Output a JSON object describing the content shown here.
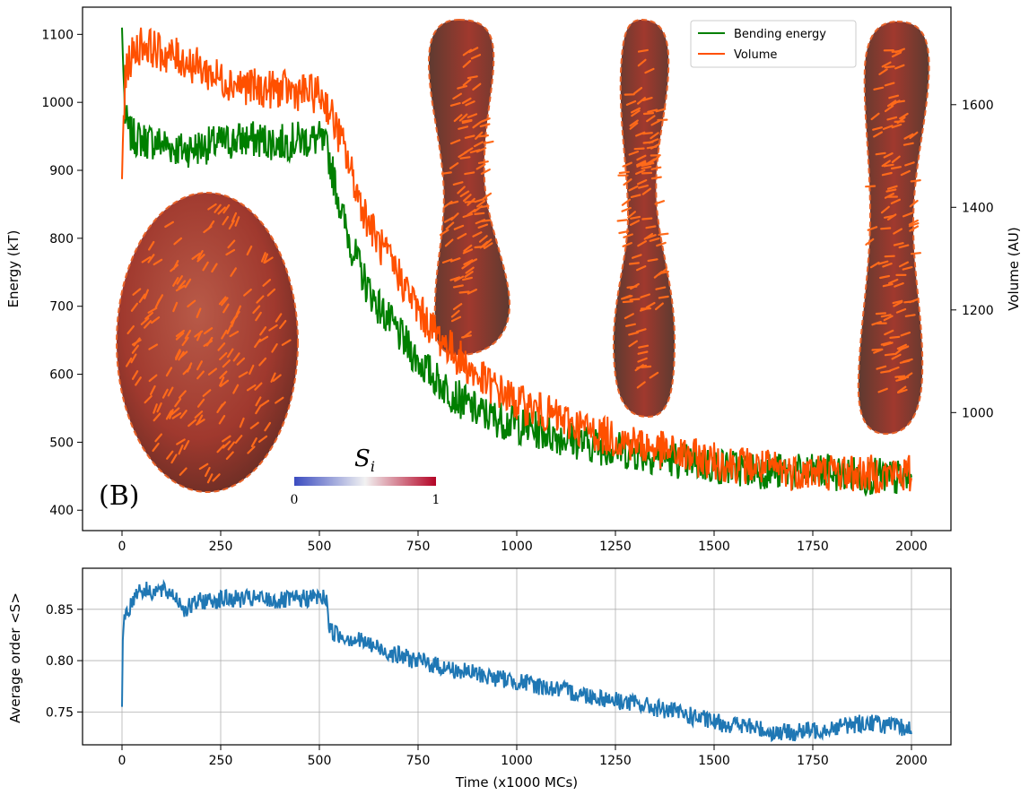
{
  "figure": {
    "panel_label": "(B)",
    "colorbar": {
      "label": "S",
      "label_sub": "i",
      "min_label": "0",
      "max_label": "1",
      "colors": [
        "#3b4cc0",
        "#f2f2f2",
        "#b40426"
      ]
    },
    "shape_colors": {
      "surface": "#a0392e",
      "director": "#ff6a1a"
    }
  },
  "chart_data": [
    {
      "type": "line",
      "title": "",
      "xlabel": "",
      "ylabel": "Energy (kT)",
      "y2label": "Volume (AU)",
      "xlim": [
        -100,
        2100
      ],
      "ylim": [
        370,
        1140
      ],
      "y2lim": [
        770,
        1790
      ],
      "xticks": [
        0,
        250,
        500,
        750,
        1000,
        1250,
        1500,
        1750,
        2000
      ],
      "yticks": [
        400,
        500,
        600,
        700,
        800,
        900,
        1000,
        1100
      ],
      "y2ticks": [
        1000,
        1200,
        1400,
        1600
      ],
      "legend": {
        "position": "top-right",
        "entries": [
          "Bending energy",
          "Volume"
        ]
      },
      "series": [
        {
          "name": "Bending energy",
          "axis": "left",
          "color": "#007f00",
          "x": [
            0,
            3,
            8,
            15,
            25,
            50,
            100,
            150,
            200,
            250,
            300,
            350,
            400,
            450,
            500,
            520,
            540,
            560,
            580,
            600,
            620,
            650,
            700,
            750,
            800,
            850,
            900,
            950,
            1000,
            1100,
            1200,
            1300,
            1400,
            1500,
            1600,
            1700,
            1800,
            1900,
            2000
          ],
          "values": [
            1110,
            1050,
            980,
            960,
            950,
            945,
            940,
            930,
            935,
            940,
            945,
            945,
            940,
            945,
            945,
            930,
            880,
            830,
            790,
            760,
            730,
            700,
            660,
            620,
            590,
            565,
            545,
            535,
            525,
            510,
            495,
            485,
            475,
            465,
            460,
            455,
            455,
            450,
            445
          ]
        },
        {
          "name": "Volume",
          "axis": "right",
          "color": "#ff5000",
          "x": [
            0,
            3,
            8,
            15,
            30,
            50,
            80,
            100,
            150,
            200,
            250,
            300,
            350,
            400,
            450,
            500,
            520,
            540,
            560,
            580,
            600,
            620,
            650,
            700,
            750,
            800,
            850,
            900,
            950,
            1000,
            1100,
            1200,
            1300,
            1400,
            1500,
            1600,
            1700,
            1800,
            1900,
            2000
          ],
          "values": [
            1455,
            1560,
            1640,
            1680,
            1700,
            1720,
            1710,
            1700,
            1690,
            1670,
            1650,
            1640,
            1630,
            1630,
            1625,
            1620,
            1600,
            1560,
            1520,
            1470,
            1420,
            1380,
            1330,
            1270,
            1200,
            1150,
            1110,
            1070,
            1045,
            1020,
            990,
            960,
            940,
            920,
            905,
            895,
            885,
            885,
            880,
            880
          ]
        }
      ]
    },
    {
      "type": "line",
      "title": "",
      "xlabel": "Time (x1000 MCs)",
      "ylabel": "Average order <S>",
      "xlim": [
        -100,
        2100
      ],
      "ylim": [
        0.718,
        0.89
      ],
      "xticks": [
        0,
        250,
        500,
        750,
        1000,
        1250,
        1500,
        1750,
        2000
      ],
      "yticks": [
        0.75,
        0.8,
        0.85
      ],
      "yticklabels": [
        "0.75",
        "0.80",
        "0.85"
      ],
      "grid": true,
      "series": [
        {
          "name": "Average order",
          "color": "#1f77b4",
          "x": [
            0,
            2,
            5,
            10,
            20,
            40,
            60,
            100,
            130,
            150,
            160,
            200,
            250,
            300,
            350,
            400,
            450,
            500,
            520,
            525,
            550,
            600,
            650,
            700,
            750,
            800,
            850,
            900,
            950,
            1000,
            1100,
            1200,
            1300,
            1400,
            1450,
            1500,
            1550,
            1600,
            1650,
            1700,
            1750,
            1800,
            1850,
            1900,
            1950,
            2000
          ],
          "values": [
            0.755,
            0.82,
            0.84,
            0.848,
            0.852,
            0.87,
            0.868,
            0.868,
            0.865,
            0.855,
            0.85,
            0.858,
            0.86,
            0.86,
            0.86,
            0.858,
            0.86,
            0.862,
            0.86,
            0.83,
            0.825,
            0.82,
            0.812,
            0.805,
            0.8,
            0.795,
            0.79,
            0.787,
            0.783,
            0.78,
            0.772,
            0.765,
            0.758,
            0.75,
            0.745,
            0.74,
            0.738,
            0.735,
            0.73,
            0.73,
            0.732,
            0.735,
            0.738,
            0.74,
            0.736,
            0.733
          ]
        }
      ]
    }
  ]
}
